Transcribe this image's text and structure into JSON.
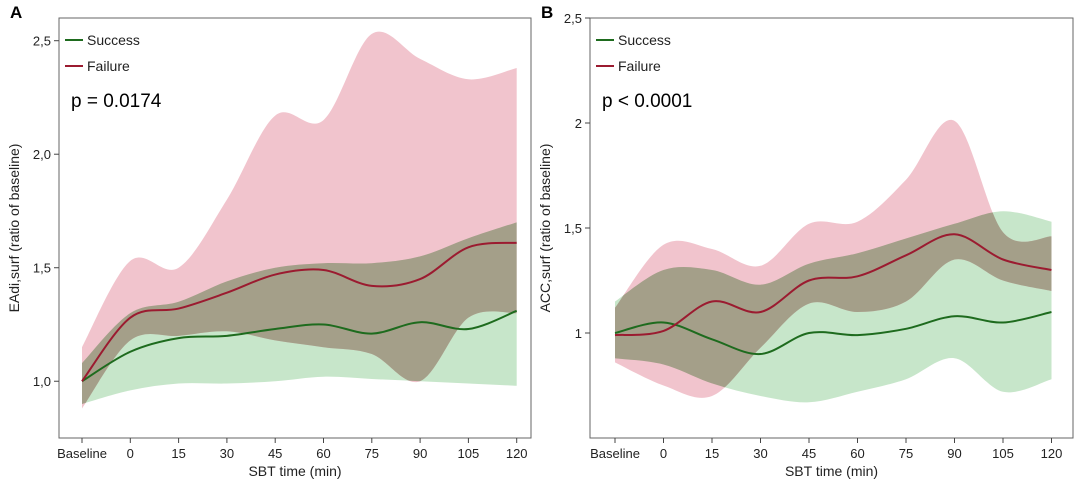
{
  "colors": {
    "success_line": "#1e6b1e",
    "failure_line": "#9b1b30",
    "success_band": "#a9d9ae",
    "failure_band": "#e9a5b2",
    "overlap_band": "#9a9a80"
  },
  "chart_data": [
    {
      "panel": "A",
      "type": "line",
      "xlabel": "SBT time (min)",
      "ylabel": "EAdi,surf (ratio of baseline)",
      "categories": [
        "Baseline",
        "0",
        "15",
        "30",
        "45",
        "60",
        "75",
        "90",
        "105",
        "120"
      ],
      "x": [
        -15,
        0,
        15,
        30,
        45,
        60,
        75,
        90,
        105,
        120
      ],
      "ylim": [
        0.75,
        2.6
      ],
      "yticks": [
        1.0,
        1.5,
        2.0,
        2.5
      ],
      "ytick_labels": [
        "1,0",
        "1,5",
        "2,0",
        "2,5"
      ],
      "annotation": "p = 0.0174",
      "legend": [
        "Success",
        "Failure"
      ],
      "series": [
        {
          "name": "Success",
          "values": [
            1.0,
            1.13,
            1.19,
            1.2,
            1.23,
            1.25,
            1.21,
            1.26,
            1.23,
            1.31
          ],
          "lower": [
            0.9,
            0.96,
            0.99,
            0.99,
            1.0,
            1.02,
            1.01,
            1.0,
            0.99,
            0.98
          ],
          "upper": [
            1.08,
            1.3,
            1.35,
            1.44,
            1.5,
            1.52,
            1.52,
            1.55,
            1.63,
            1.7
          ]
        },
        {
          "name": "Failure",
          "values": [
            1.0,
            1.28,
            1.32,
            1.39,
            1.47,
            1.49,
            1.42,
            1.45,
            1.59,
            1.61
          ],
          "lower": [
            0.88,
            1.18,
            1.2,
            1.22,
            1.18,
            1.15,
            1.12,
            1.0,
            1.28,
            1.3
          ],
          "upper": [
            1.15,
            1.53,
            1.5,
            1.8,
            2.17,
            2.15,
            2.53,
            2.42,
            2.33,
            2.38
          ]
        }
      ]
    },
    {
      "panel": "B",
      "type": "line",
      "xlabel": "SBT time (min)",
      "ylabel": "ACC,surf (ratio of baseline)",
      "categories": [
        "Baseline",
        "0",
        "15",
        "30",
        "45",
        "60",
        "75",
        "90",
        "105",
        "120"
      ],
      "x": [
        -15,
        0,
        15,
        30,
        45,
        60,
        75,
        90,
        105,
        120
      ],
      "ylim": [
        0.5,
        2.5
      ],
      "yticks": [
        1.0,
        1.5,
        2.0,
        2.5
      ],
      "ytick_labels": [
        "1",
        "1,5",
        "2",
        "2,5"
      ],
      "annotation": "p < 0.0001",
      "legend": [
        "Success",
        "Failure"
      ],
      "series": [
        {
          "name": "Success",
          "values": [
            1.0,
            1.05,
            0.97,
            0.9,
            1.0,
            0.99,
            1.02,
            1.08,
            1.05,
            1.1
          ],
          "lower": [
            0.88,
            0.85,
            0.76,
            0.7,
            0.67,
            0.72,
            0.78,
            0.88,
            0.72,
            0.78
          ],
          "upper": [
            1.15,
            1.3,
            1.3,
            1.23,
            1.33,
            1.38,
            1.45,
            1.52,
            1.58,
            1.53
          ]
        },
        {
          "name": "Failure",
          "values": [
            0.99,
            1.01,
            1.15,
            1.1,
            1.25,
            1.27,
            1.37,
            1.47,
            1.35,
            1.3
          ],
          "lower": [
            0.86,
            0.75,
            0.7,
            0.93,
            1.14,
            1.1,
            1.15,
            1.35,
            1.25,
            1.2
          ],
          "upper": [
            1.12,
            1.42,
            1.4,
            1.32,
            1.52,
            1.53,
            1.73,
            2.01,
            1.48,
            1.46
          ]
        }
      ]
    }
  ]
}
